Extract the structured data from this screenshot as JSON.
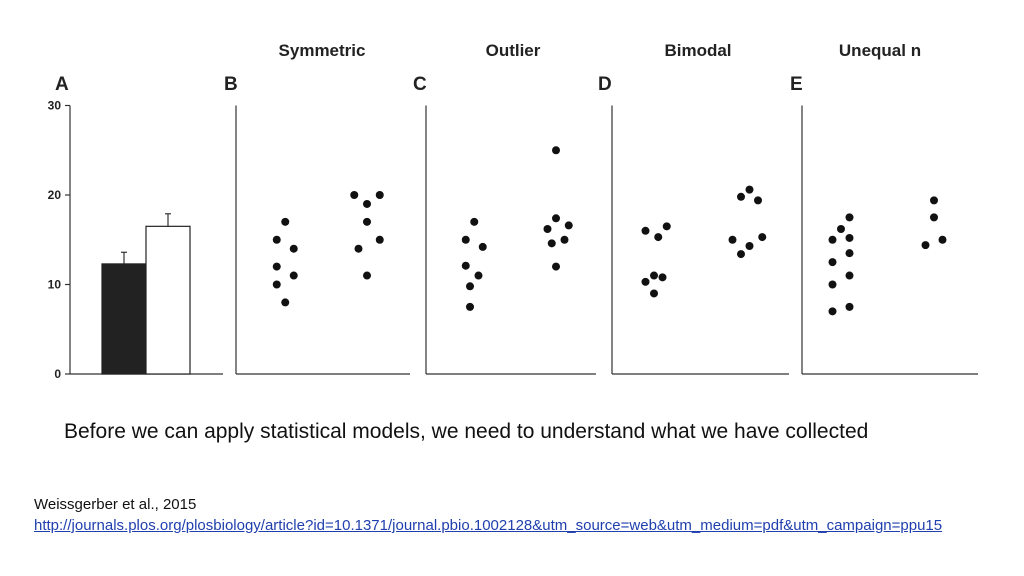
{
  "chart_data": {
    "type": "scatter",
    "yticks": [
      0,
      10,
      20,
      30
    ],
    "ylim": [
      0,
      30
    ],
    "panels": [
      {
        "letter": "A",
        "title": "",
        "type": "bar",
        "bars": [
          {
            "value": 12.3,
            "error": 1.3,
            "fill": "#222222"
          },
          {
            "value": 16.5,
            "error": 1.4,
            "fill": "#ffffff"
          }
        ]
      },
      {
        "letter": "B",
        "title": "Symmetric",
        "type": "scatter",
        "groups": [
          [
            [
              -0.5,
              15
            ],
            [
              0.5,
              17
            ],
            [
              1.5,
              14
            ],
            [
              -0.5,
              12
            ],
            [
              1.5,
              11
            ],
            [
              -0.5,
              10
            ],
            [
              0.5,
              8
            ]
          ],
          [
            [
              -1.5,
              20
            ],
            [
              0,
              19
            ],
            [
              1.5,
              20
            ],
            [
              0,
              17
            ],
            [
              1.5,
              15
            ],
            [
              -1,
              14
            ],
            [
              0,
              11
            ]
          ]
        ]
      },
      {
        "letter": "C",
        "title": "Outlier",
        "type": "scatter",
        "groups": [
          [
            [
              -0.5,
              15
            ],
            [
              0.5,
              17
            ],
            [
              1.5,
              14.2
            ],
            [
              -0.5,
              12.1
            ],
            [
              1,
              11
            ],
            [
              0,
              9.8
            ],
            [
              0,
              7.5
            ]
          ],
          [
            [
              0,
              25
            ],
            [
              0,
              17.4
            ],
            [
              1.5,
              16.6
            ],
            [
              -1,
              16.2
            ],
            [
              1,
              15
            ],
            [
              -0.5,
              14.6
            ],
            [
              0,
              12
            ]
          ]
        ]
      },
      {
        "letter": "D",
        "title": "Bimodal",
        "type": "scatter",
        "groups": [
          [
            [
              -1,
              16
            ],
            [
              1.5,
              16.5
            ],
            [
              0.5,
              15.3
            ],
            [
              0,
              11
            ],
            [
              1,
              10.8
            ],
            [
              -1,
              10.3
            ],
            [
              0,
              9
            ]
          ],
          [
            [
              1,
              20.6
            ],
            [
              0,
              19.8
            ],
            [
              2,
              19.4
            ],
            [
              2.5,
              15.3
            ],
            [
              -1,
              15
            ],
            [
              1,
              14.3
            ],
            [
              0,
              13.4
            ]
          ]
        ]
      },
      {
        "letter": "E",
        "title": "Unequal n",
        "type": "scatter",
        "groups": [
          [
            [
              1,
              17.5
            ],
            [
              0,
              16.2
            ],
            [
              -1,
              15
            ],
            [
              1,
              15.2
            ],
            [
              1,
              13.5
            ],
            [
              -1,
              12.5
            ],
            [
              1,
              11
            ],
            [
              -1,
              10
            ],
            [
              1,
              7.5
            ],
            [
              -1,
              7
            ]
          ],
          [
            [
              0,
              19.4
            ],
            [
              0,
              17.5
            ],
            [
              1,
              15
            ],
            [
              -1,
              14.4
            ]
          ]
        ]
      }
    ]
  },
  "caption": "Before we can apply statistical models, we need to understand what we have collected",
  "citation": {
    "author": "Weissgerber et al., 2015",
    "url": "http://journals.plos.org/plosbiology/article?id=10.1371/journal.pbio.1002128&utm_source=web&utm_medium=pdf&utm_campaign=ppu15"
  }
}
